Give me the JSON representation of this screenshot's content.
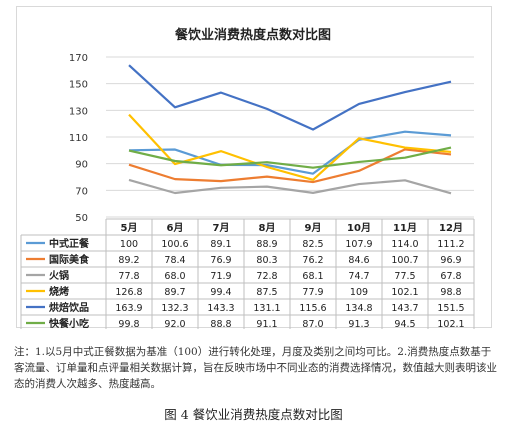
{
  "chart_data": {
    "type": "line",
    "title": "餐饮业消费热度点数对比图",
    "categories": [
      "5月",
      "6月",
      "7月",
      "8月",
      "9月",
      "10月",
      "11月",
      "12月"
    ],
    "ylim": [
      50,
      170
    ],
    "yticks": [
      50,
      70,
      90,
      110,
      130,
      150,
      170
    ],
    "grid": true,
    "legend": "table-below",
    "series": [
      {
        "name": "中式正餐",
        "color": "#5b9bd5",
        "values": [
          100,
          100.6,
          89.1,
          88.9,
          82.5,
          107.9,
          114.0,
          111.2
        ],
        "labels": [
          "100",
          "100.6",
          "89.1",
          "88.9",
          "82.5",
          "107.9",
          "114.0",
          "111.2"
        ]
      },
      {
        "name": "国际美食",
        "color": "#ed7d31",
        "values": [
          89.2,
          78.4,
          76.9,
          80.3,
          76.2,
          84.6,
          100.7,
          96.9
        ],
        "labels": [
          "89.2",
          "78.4",
          "76.9",
          "80.3",
          "76.2",
          "84.6",
          "100.7",
          "96.9"
        ]
      },
      {
        "name": "火锅",
        "color": "#a5a5a5",
        "values": [
          77.8,
          68.0,
          71.9,
          72.8,
          68.1,
          74.7,
          77.5,
          67.8
        ],
        "labels": [
          "77.8",
          "68.0",
          "71.9",
          "72.8",
          "68.1",
          "74.7",
          "77.5",
          "67.8"
        ]
      },
      {
        "name": "烧烤",
        "color": "#ffc000",
        "values": [
          126.8,
          89.7,
          99.4,
          87.5,
          77.9,
          109,
          102.1,
          98.8
        ],
        "labels": [
          "126.8",
          "89.7",
          "99.4",
          "87.5",
          "77.9",
          "109",
          "102.1",
          "98.8"
        ]
      },
      {
        "name": "烘焙饮品",
        "color": "#4472c4",
        "values": [
          163.9,
          132.3,
          143.3,
          131.1,
          115.6,
          134.8,
          143.7,
          151.5
        ],
        "labels": [
          "163.9",
          "132.3",
          "143.3",
          "131.1",
          "115.6",
          "134.8",
          "143.7",
          "151.5"
        ]
      },
      {
        "name": "快餐小吃",
        "color": "#70ad47",
        "values": [
          99.8,
          92.0,
          88.8,
          91.1,
          87.0,
          91.3,
          94.5,
          102.1
        ],
        "labels": [
          "99.8",
          "92.0",
          "88.8",
          "91.1",
          "87.0",
          "91.3",
          "94.5",
          "102.1"
        ]
      }
    ]
  },
  "note": "注：1.以5月中式正餐数据为基准（100）进行转化处理，月度及类别之间均可比。2.消费热度点数基于客流量、订单量和点评量相关数据计算，旨在反映市场中不同业态的消费选择情况，数值越大则表明该业态的消费人次越多、热度越高。",
  "caption": "图 4  餐饮业消费热度点数对比图"
}
